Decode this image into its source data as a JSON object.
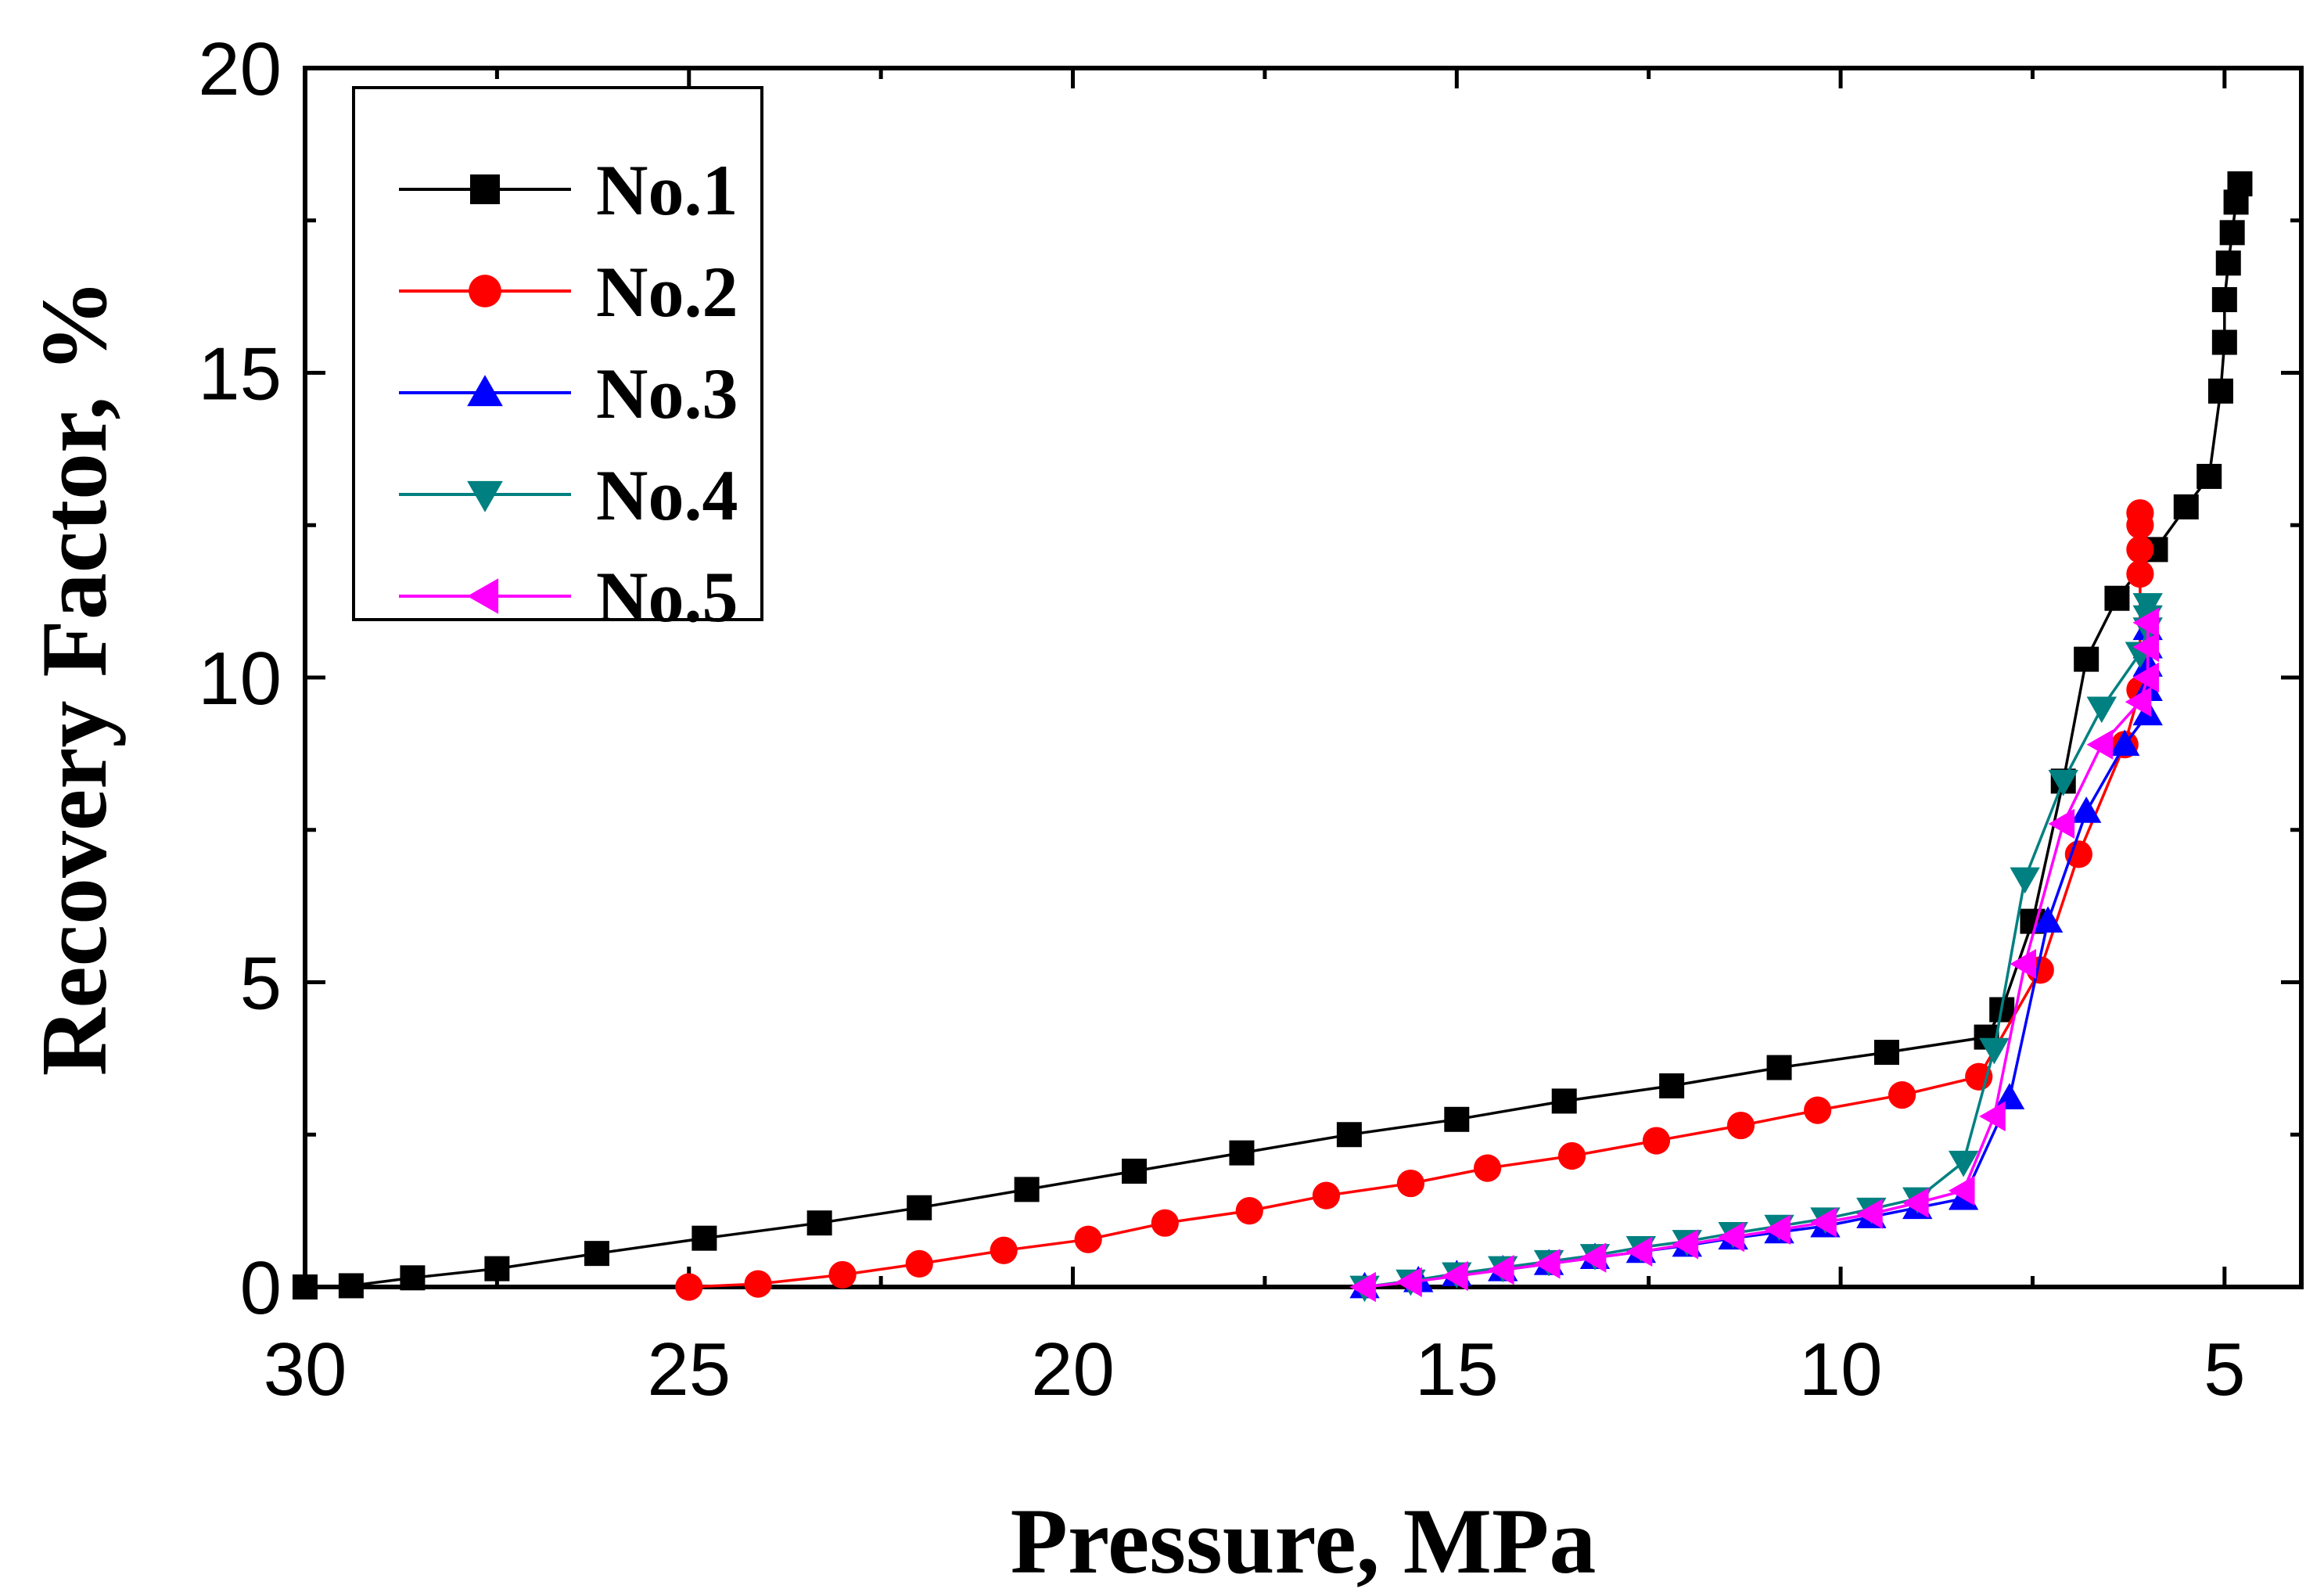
{
  "chart_data": {
    "type": "line",
    "title": "",
    "xlabel": "Pressure, MPa",
    "ylabel": "Recovery Factor, %",
    "xlim": [
      30,
      4
    ],
    "ylim": [
      0,
      20
    ],
    "x_reversed": true,
    "x_ticks": [
      30,
      25,
      20,
      15,
      10,
      5
    ],
    "y_ticks": [
      0,
      5,
      10,
      15,
      20
    ],
    "x_tick_labels": [
      "30",
      "25",
      "20",
      "15",
      "10",
      "5"
    ],
    "y_tick_labels": [
      "0",
      "5",
      "10",
      "15",
      "20"
    ],
    "grid": false,
    "legend_position": "top-left",
    "series": [
      {
        "name": "No.1",
        "color": "#000000",
        "marker": "square",
        "x": [
          30.0,
          29.4,
          28.6,
          27.5,
          26.2,
          24.8,
          23.3,
          22.0,
          20.6,
          19.2,
          17.8,
          16.4,
          15.0,
          13.6,
          12.2,
          10.8,
          9.4,
          8.1,
          7.9,
          7.5,
          7.1,
          6.8,
          6.4,
          5.9,
          5.5,
          5.2,
          5.05,
          5.0,
          5.0,
          4.95,
          4.9,
          4.85,
          4.8
        ],
        "y": [
          0.0,
          0.02,
          0.15,
          0.3,
          0.55,
          0.8,
          1.05,
          1.3,
          1.6,
          1.9,
          2.2,
          2.5,
          2.75,
          3.05,
          3.3,
          3.6,
          3.85,
          4.1,
          4.55,
          6.0,
          8.3,
          10.3,
          11.3,
          12.1,
          12.8,
          13.3,
          14.7,
          15.5,
          16.2,
          16.8,
          17.3,
          17.8,
          18.1
        ]
      },
      {
        "name": "No.2",
        "color": "#ff0000",
        "marker": "circle",
        "x": [
          25.0,
          24.1,
          23.0,
          22.0,
          20.9,
          19.8,
          18.8,
          17.7,
          16.7,
          15.6,
          14.6,
          13.5,
          12.4,
          11.3,
          10.3,
          9.2,
          8.2,
          7.4,
          6.9,
          6.3,
          6.1,
          6.1,
          6.1,
          6.1,
          6.1
        ],
        "y": [
          0.0,
          0.05,
          0.2,
          0.38,
          0.6,
          0.78,
          1.05,
          1.25,
          1.5,
          1.7,
          1.95,
          2.15,
          2.4,
          2.65,
          2.9,
          3.15,
          3.45,
          5.2,
          7.1,
          8.9,
          9.8,
          11.7,
          12.1,
          12.5,
          12.7
        ]
      },
      {
        "name": "No.3",
        "color": "#0000ff",
        "marker": "triangle-up",
        "x": [
          16.2,
          15.5,
          15.0,
          14.4,
          13.8,
          13.2,
          12.6,
          12.0,
          11.4,
          10.8,
          10.2,
          9.6,
          9.0,
          8.4,
          7.8,
          7.3,
          6.8,
          6.3,
          6.0,
          6.0,
          6.0,
          6.0,
          6.0
        ],
        "y": [
          0.0,
          0.1,
          0.2,
          0.28,
          0.38,
          0.48,
          0.58,
          0.68,
          0.8,
          0.9,
          1.0,
          1.15,
          1.3,
          1.45,
          3.1,
          6.0,
          7.8,
          8.9,
          9.4,
          9.8,
          10.2,
          10.5,
          10.8
        ]
      },
      {
        "name": "No.4",
        "color": "#008080",
        "marker": "triangle-down",
        "x": [
          16.2,
          15.6,
          15.0,
          14.4,
          13.8,
          13.2,
          12.6,
          12.0,
          11.4,
          10.8,
          10.2,
          9.6,
          9.0,
          8.4,
          8.0,
          7.6,
          7.1,
          6.6,
          6.1,
          6.0,
          6.0,
          6.0
        ],
        "y": [
          0.0,
          0.1,
          0.22,
          0.32,
          0.42,
          0.52,
          0.65,
          0.75,
          0.88,
          1.0,
          1.12,
          1.28,
          1.45,
          2.05,
          3.9,
          6.7,
          8.3,
          9.5,
          10.4,
          10.8,
          11.0,
          11.2
        ]
      },
      {
        "name": "No.5",
        "color": "#ff00ff",
        "marker": "triangle-left",
        "x": [
          16.2,
          15.6,
          15.0,
          14.4,
          13.8,
          13.2,
          12.6,
          12.0,
          11.4,
          10.8,
          10.2,
          9.6,
          9.0,
          8.4,
          8.0,
          7.6,
          7.1,
          6.6,
          6.1,
          6.0,
          6.0,
          6.0
        ],
        "y": [
          0.0,
          0.08,
          0.18,
          0.28,
          0.38,
          0.48,
          0.58,
          0.7,
          0.82,
          0.94,
          1.06,
          1.2,
          1.38,
          1.58,
          2.8,
          5.3,
          7.6,
          8.9,
          9.6,
          10.0,
          10.5,
          10.9
        ]
      }
    ]
  }
}
